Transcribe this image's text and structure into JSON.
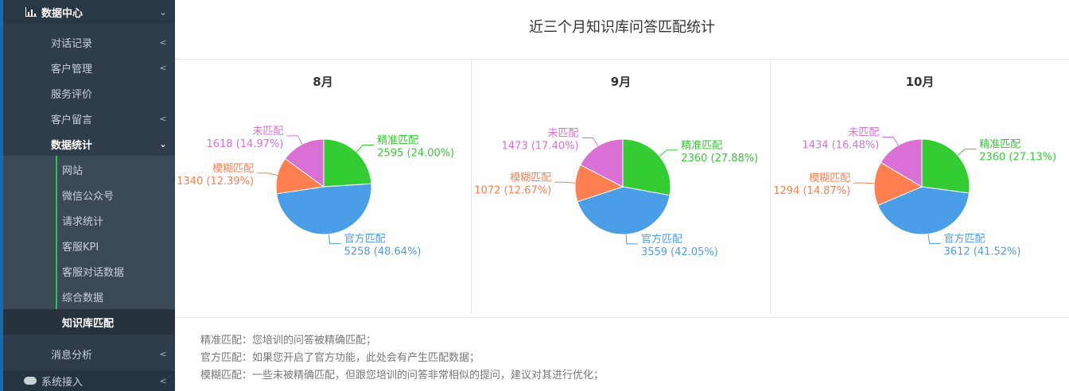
{
  "sidebar": {
    "top": {
      "label": "数据中心",
      "icon": "bar-chart-icon"
    },
    "items": [
      {
        "label": "对话记录",
        "arrow": "<"
      },
      {
        "label": "客户管理",
        "arrow": "<"
      },
      {
        "label": "服务评价",
        "arrow": ""
      },
      {
        "label": "客户留言",
        "arrow": "<"
      },
      {
        "label": "数据统计",
        "arrow": "v"
      }
    ],
    "sub_items": [
      {
        "label": "网站"
      },
      {
        "label": "微信公众号"
      },
      {
        "label": "请求统计"
      },
      {
        "label": "客服KPI"
      },
      {
        "label": "客服对话数据"
      },
      {
        "label": "综合数据"
      },
      {
        "label": "知识库匹配"
      }
    ],
    "after": {
      "label": "消息分析",
      "arrow": "<"
    },
    "bottom": {
      "label": "系统接入",
      "arrow": "<",
      "icon": "cloud-icon"
    }
  },
  "main": {
    "title": "近三个月知识库问答匹配统计",
    "notes": [
      "精准匹配：您培训的问答被精确匹配；",
      "官方匹配：如果您开启了官方功能，此处会有产生匹配数据；",
      "模糊匹配：一些未被精确匹配，但跟您培训的问答非常相似的提问，建议对其进行优化；"
    ]
  },
  "colors": {
    "精准匹配": "#33cc33",
    "官方匹配": "#4a9ee8",
    "模糊匹配": "#ff7f50",
    "未匹配": "#da70d6"
  },
  "chart_data": [
    {
      "type": "pie",
      "title": "8月",
      "slices": [
        {
          "label": "精准匹配",
          "value": 2595,
          "percent": "24.00%"
        },
        {
          "label": "官方匹配",
          "value": 5258,
          "percent": "48.64%"
        },
        {
          "label": "模糊匹配",
          "value": 1340,
          "percent": "12.39%"
        },
        {
          "label": "未匹配",
          "value": 1618,
          "percent": "14.97%"
        }
      ]
    },
    {
      "type": "pie",
      "title": "9月",
      "slices": [
        {
          "label": "精准匹配",
          "value": 2360,
          "percent": "27.88%"
        },
        {
          "label": "官方匹配",
          "value": 3559,
          "percent": "42.05%"
        },
        {
          "label": "模糊匹配",
          "value": 1072,
          "percent": "12.67%"
        },
        {
          "label": "未匹配",
          "value": 1473,
          "percent": "17.40%"
        }
      ]
    },
    {
      "type": "pie",
      "title": "10月",
      "slices": [
        {
          "label": "精准匹配",
          "value": 2360,
          "percent": "27.13%"
        },
        {
          "label": "官方匹配",
          "value": 3612,
          "percent": "41.52%"
        },
        {
          "label": "模糊匹配",
          "value": 1294,
          "percent": "14.87%"
        },
        {
          "label": "未匹配",
          "value": 1434,
          "percent": "16.48%"
        }
      ]
    }
  ]
}
